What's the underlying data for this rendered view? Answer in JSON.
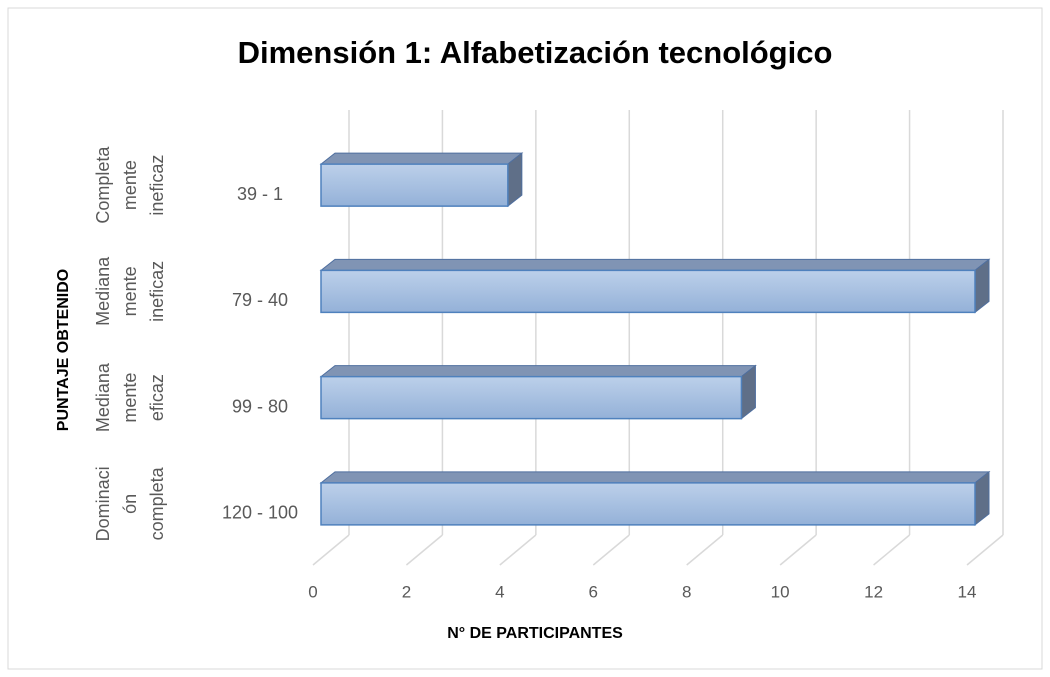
{
  "chart_data": {
    "type": "bar3d_horizontal",
    "title": "Dimensión 1: Alfabetización tecnológico",
    "x_label": "N° DE PARTICIPANTES",
    "y_label": "PUNTAJE OBTENIDO",
    "categories": [
      "39 - 1",
      "79 - 40",
      "99 - 80",
      "120 - 100"
    ],
    "groups": [
      [
        "Completa",
        "mente",
        "ineficaz"
      ],
      [
        "Mediana",
        "mente",
        "ineficaz"
      ],
      [
        "Mediana",
        "mente",
        "eficaz"
      ],
      [
        "Dominaci",
        "ón",
        "completa"
      ]
    ],
    "values": [
      4,
      14,
      9,
      14
    ],
    "color": "#a7bfe0",
    "xlim": [
      0,
      14
    ],
    "xticks": [
      0,
      2,
      4,
      6,
      8,
      10,
      12,
      14
    ],
    "grid": true
  }
}
